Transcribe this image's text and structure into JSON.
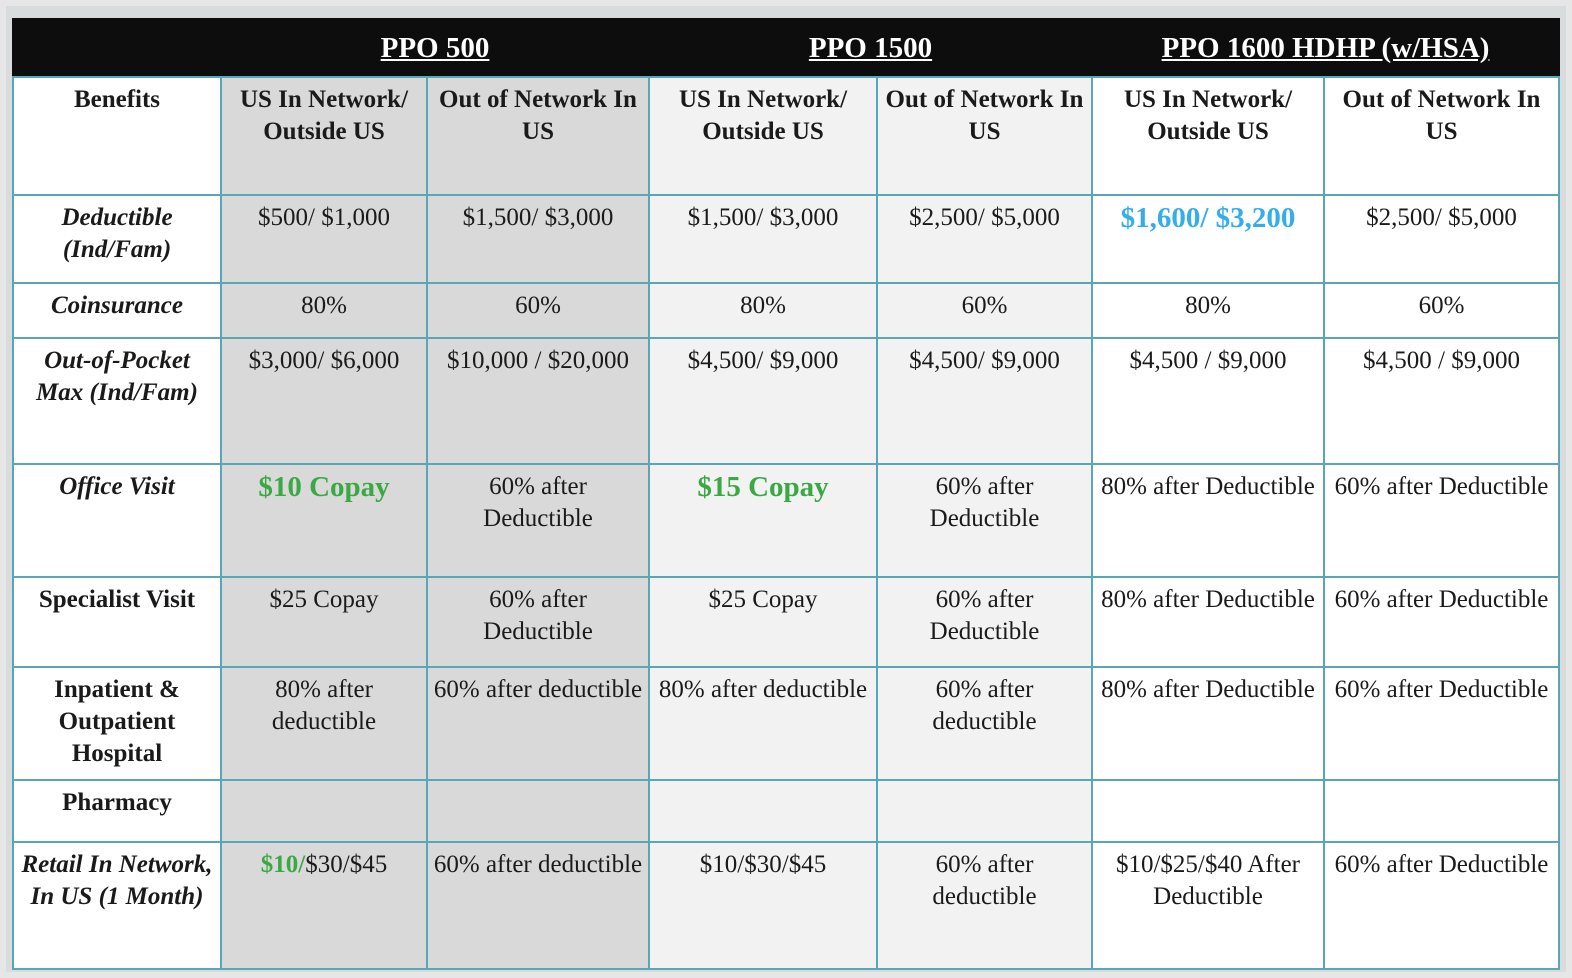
{
  "plans": [
    "PPO 500",
    "PPO 1500",
    "PPO 1600 HDHP (w/HSA)"
  ],
  "headers": {
    "benefits": "Benefits",
    "ppo500_in": "US In Network/ Outside US",
    "ppo500_out": "Out of Network In US",
    "ppo1500_in": "US In Network/ Outside US",
    "ppo1500_out": "Out of Network In US",
    "hdhp_in": "US In Network/ Outside US",
    "hdhp_out": "Out of Network In US"
  },
  "rows": {
    "deductible": {
      "label": "Deductible (Ind/Fam)",
      "values": [
        "$500/ $1,000",
        "$1,500/ $3,000",
        "$1,500/ $3,000",
        "$2,500/ $5,000",
        "$1,600/ $3,200",
        "$2,500/ $5,000"
      ]
    },
    "coinsurance": {
      "label": "Coinsurance",
      "values": [
        "80%",
        "60%",
        "80%",
        "60%",
        "80%",
        "60%"
      ]
    },
    "oop": {
      "label": "Out-of-Pocket Max (Ind/Fam)",
      "values": [
        "$3,000/ $6,000",
        "$10,000 / $20,000",
        "$4,500/ $9,000",
        "$4,500/ $9,000",
        "$4,500 / $9,000",
        "$4,500 / $9,000"
      ]
    },
    "office": {
      "label": "Office Visit",
      "values": [
        "$10 Copay",
        "60% after Deductible",
        "$15 Copay",
        "60% after Deductible",
        "80% after Deductible",
        "60% after Deductible"
      ]
    },
    "specialist": {
      "label": "Specialist Visit",
      "values": [
        "$25 Copay",
        "60% after Deductible",
        "$25 Copay",
        "60% after Deductible",
        "80% after Deductible",
        "60% after Deductible"
      ]
    },
    "hospital": {
      "label": "Inpatient & Outpatient Hospital",
      "values": [
        "80% after deductible",
        "60% after deductible",
        "80% after deductible",
        "60% after deductible",
        "80% after Deductible",
        "60% after Deductible"
      ]
    },
    "pharmacy": {
      "label": "Pharmacy"
    },
    "retail": {
      "label": "Retail In Network, In US (1 Month)",
      "ppo500_in_green": "$10/",
      "ppo500_in_rest": "$30/$45",
      "values": [
        "60% after deductible",
        "$10/$30/$45",
        "60% after deductible",
        "$10/$25/$40 After Deductible",
        "60% after Deductible"
      ]
    }
  }
}
